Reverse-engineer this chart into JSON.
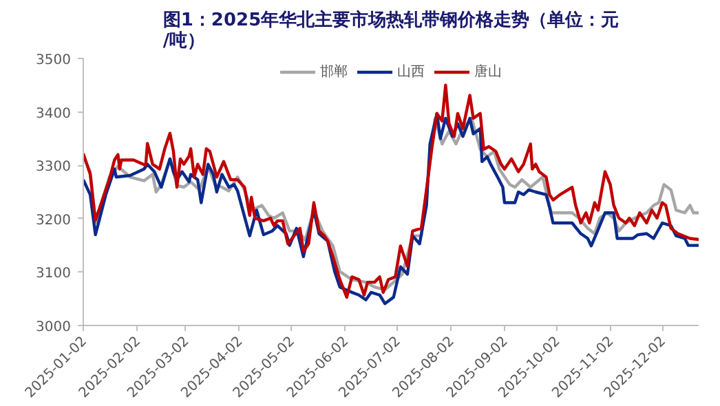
{
  "chart_data": {
    "type": "line",
    "title": "图1：2025年华北主要市场热轧带钢价格走势（单位：元/吨）",
    "legend": "top",
    "grid": false,
    "marker": "none",
    "line_style": "solid",
    "xlim": [
      "2025-01-02",
      "2025-12-23"
    ],
    "xticks": [
      "2025-01-02",
      "2025-02-02",
      "2025-03-02",
      "2025-04-02",
      "2025-05-02",
      "2025-06-02",
      "2025-07-02",
      "2025-08-02",
      "2025-09-02",
      "2025-10-02",
      "2025-11-02",
      "2025-12-02"
    ],
    "ylim": [
      3000,
      3500
    ],
    "yticks": [
      3000,
      3100,
      3200,
      3300,
      3400,
      3500
    ],
    "series": [
      {
        "name": "邯郸",
        "color": "#a6a6a6",
        "x": [
          "2025-01-02",
          "2025-01-06",
          "2025-01-09",
          "2025-01-17",
          "2025-01-22",
          "2025-01-29",
          "2025-02-06",
          "2025-02-11",
          "2025-02-13",
          "2025-02-16",
          "2025-02-21",
          "2025-02-25",
          "2025-03-01",
          "2025-03-05",
          "2025-03-10",
          "2025-03-15",
          "2025-03-19",
          "2025-03-23",
          "2025-03-27",
          "2025-04-01",
          "2025-04-05",
          "2025-04-09",
          "2025-04-15",
          "2025-04-19",
          "2025-04-22",
          "2025-04-27",
          "2025-05-01",
          "2025-05-06",
          "2025-05-10",
          "2025-05-15",
          "2025-05-20",
          "2025-05-26",
          "2025-05-30",
          "2025-06-06",
          "2025-06-14",
          "2025-06-19",
          "2025-06-25",
          "2025-06-30",
          "2025-07-05",
          "2025-07-11",
          "2025-07-16",
          "2025-07-20",
          "2025-07-24",
          "2025-07-28",
          "2025-08-01",
          "2025-08-05",
          "2025-08-09",
          "2025-08-14",
          "2025-08-19",
          "2025-08-23",
          "2025-08-27",
          "2025-08-30",
          "2025-09-05",
          "2025-09-08",
          "2025-09-12",
          "2025-09-17",
          "2025-09-24",
          "2025-09-29",
          "2025-10-11",
          "2025-10-15",
          "2025-10-20",
          "2025-10-24",
          "2025-10-27",
          "2025-10-31",
          "2025-11-04",
          "2025-11-07",
          "2025-11-11",
          "2025-11-16",
          "2025-11-23",
          "2025-11-27",
          "2025-11-30",
          "2025-12-03",
          "2025-12-07",
          "2025-12-10",
          "2025-12-15",
          "2025-12-18",
          "2025-12-20",
          "2025-12-23"
        ],
        "values": [
          3317,
          3288,
          3192,
          3278,
          3298,
          3278,
          3271,
          3283,
          3250,
          3264,
          3312,
          3262,
          3259,
          3269,
          3254,
          3298,
          3264,
          3259,
          3252,
          3278,
          3254,
          3216,
          3225,
          3206,
          3201,
          3211,
          3177,
          3177,
          3160,
          3216,
          3177,
          3149,
          3101,
          3086,
          3081,
          3072,
          3067,
          3081,
          3096,
          3168,
          3168,
          3283,
          3388,
          3340,
          3364,
          3340,
          3369,
          3388,
          3330,
          3316,
          3326,
          3293,
          3264,
          3259,
          3273,
          3259,
          3278,
          3211,
          3211,
          3201,
          3182,
          3172,
          3201,
          3211,
          3201,
          3177,
          3192,
          3201,
          3211,
          3225,
          3230,
          3264,
          3254,
          3216,
          3211,
          3225,
          3211,
          3211
        ]
      },
      {
        "name": "山西",
        "color": "#0b2a8c",
        "x": [
          "2025-01-02",
          "2025-01-06",
          "2025-01-09",
          "2025-01-15",
          "2025-01-20",
          "2025-01-21",
          "2025-01-29",
          "2025-02-06",
          "2025-02-08",
          "2025-02-12",
          "2025-02-16",
          "2025-02-21",
          "2025-02-23",
          "2025-02-25",
          "2025-02-28",
          "2025-03-04",
          "2025-03-05",
          "2025-03-09",
          "2025-03-11",
          "2025-03-15",
          "2025-03-18",
          "2025-03-20",
          "2025-03-23",
          "2025-03-27",
          "2025-03-30",
          "2025-04-01",
          "2025-04-08",
          "2025-04-10",
          "2025-04-12",
          "2025-04-16",
          "2025-04-21",
          "2025-04-24",
          "2025-04-29",
          "2025-05-01",
          "2025-05-05",
          "2025-05-09",
          "2025-05-15",
          "2025-05-18",
          "2025-05-23",
          "2025-05-27",
          "2025-05-30",
          "2025-06-06",
          "2025-06-10",
          "2025-06-14",
          "2025-06-17",
          "2025-06-22",
          "2025-06-25",
          "2025-06-30",
          "2025-07-04",
          "2025-07-08",
          "2025-07-11",
          "2025-07-15",
          "2025-07-19",
          "2025-07-21",
          "2025-07-25",
          "2025-07-27",
          "2025-07-30",
          "2025-08-03",
          "2025-08-06",
          "2025-08-09",
          "2025-08-13",
          "2025-08-15",
          "2025-08-19",
          "2025-08-20",
          "2025-08-23",
          "2025-08-25",
          "2025-08-29",
          "2025-09-01",
          "2025-09-02",
          "2025-09-08",
          "2025-09-10",
          "2025-09-13",
          "2025-09-16",
          "2025-09-20",
          "2025-09-26",
          "2025-09-28",
          "2025-09-30",
          "2025-10-11",
          "2025-10-16",
          "2025-10-20",
          "2025-10-22",
          "2025-10-25",
          "2025-10-30",
          "2025-11-04",
          "2025-11-06",
          "2025-11-15",
          "2025-11-18",
          "2025-11-23",
          "2025-11-27",
          "2025-12-02",
          "2025-12-07",
          "2025-12-10",
          "2025-12-15",
          "2025-12-17",
          "2025-12-23"
        ],
        "values": [
          3273,
          3245,
          3170,
          3245,
          3293,
          3278,
          3281,
          3293,
          3302,
          3288,
          3259,
          3312,
          3288,
          3273,
          3288,
          3269,
          3283,
          3273,
          3230,
          3302,
          3283,
          3250,
          3283,
          3259,
          3264,
          3252,
          3168,
          3192,
          3216,
          3170,
          3177,
          3187,
          3172,
          3150,
          3182,
          3129,
          3216,
          3172,
          3158,
          3101,
          3072,
          3062,
          3057,
          3048,
          3062,
          3057,
          3041,
          3053,
          3110,
          3096,
          3168,
          3153,
          3225,
          3340,
          3397,
          3350,
          3388,
          3354,
          3378,
          3354,
          3388,
          3359,
          3369,
          3307,
          3316,
          3302,
          3278,
          3259,
          3230,
          3230,
          3250,
          3245,
          3254,
          3250,
          3245,
          3221,
          3192,
          3192,
          3172,
          3163,
          3149,
          3172,
          3211,
          3211,
          3163,
          3163,
          3170,
          3172,
          3163,
          3192,
          3187,
          3168,
          3163,
          3150,
          3150
        ]
      },
      {
        "name": "唐山",
        "color": "#c00000",
        "x": [
          "2025-01-02",
          "2025-01-06",
          "2025-01-09",
          "2025-01-17",
          "2025-01-20",
          "2025-01-22",
          "2025-01-23",
          "2025-01-24",
          "2025-01-31",
          "2025-02-07",
          "2025-02-08",
          "2025-02-11",
          "2025-02-15",
          "2025-02-18",
          "2025-02-21",
          "2025-02-23",
          "2025-02-25",
          "2025-02-27",
          "2025-03-01",
          "2025-03-04",
          "2025-03-05",
          "2025-03-07",
          "2025-03-09",
          "2025-03-12",
          "2025-03-14",
          "2025-03-16",
          "2025-03-20",
          "2025-03-24",
          "2025-03-28",
          "2025-04-01",
          "2025-04-05",
          "2025-04-08",
          "2025-04-09",
          "2025-04-11",
          "2025-04-16",
          "2025-04-20",
          "2025-04-22",
          "2025-04-24",
          "2025-04-27",
          "2025-04-30",
          "2025-05-07",
          "2025-05-09",
          "2025-05-12",
          "2025-05-15",
          "2025-05-18",
          "2025-05-21",
          "2025-05-23",
          "2025-05-26",
          "2025-05-30",
          "2025-06-03",
          "2025-06-06",
          "2025-06-10",
          "2025-06-13",
          "2025-06-15",
          "2025-06-19",
          "2025-06-22",
          "2025-06-24",
          "2025-06-27",
          "2025-07-01",
          "2025-07-04",
          "2025-07-08",
          "2025-07-11",
          "2025-07-16",
          "2025-07-19",
          "2025-07-22",
          "2025-07-25",
          "2025-07-28",
          "2025-07-30",
          "2025-08-01",
          "2025-08-04",
          "2025-08-06",
          "2025-08-09",
          "2025-08-13",
          "2025-08-15",
          "2025-08-19",
          "2025-08-21",
          "2025-08-24",
          "2025-08-28",
          "2025-08-31",
          "2025-09-02",
          "2025-09-06",
          "2025-09-10",
          "2025-09-13",
          "2025-09-17",
          "2025-09-18",
          "2025-09-20",
          "2025-09-22",
          "2025-09-26",
          "2025-09-28",
          "2025-09-30",
          "2025-10-04",
          "2025-10-11",
          "2025-10-13",
          "2025-10-16",
          "2025-10-19",
          "2025-10-21",
          "2025-10-24",
          "2025-10-26",
          "2025-10-30",
          "2025-11-02",
          "2025-11-04",
          "2025-11-07",
          "2025-11-11",
          "2025-11-13",
          "2025-11-16",
          "2025-11-19",
          "2025-11-23",
          "2025-11-26",
          "2025-11-29",
          "2025-12-02",
          "2025-12-04",
          "2025-12-07",
          "2025-12-11",
          "2025-12-14",
          "2025-12-18",
          "2025-12-23"
        ],
        "values": [
          3322,
          3283,
          3197,
          3273,
          3310,
          3320,
          3293,
          3310,
          3310,
          3300,
          3341,
          3302,
          3293,
          3331,
          3360,
          3326,
          3259,
          3312,
          3302,
          3317,
          3331,
          3278,
          3302,
          3283,
          3331,
          3326,
          3278,
          3307,
          3273,
          3273,
          3259,
          3206,
          3240,
          3201,
          3196,
          3201,
          3187,
          3196,
          3196,
          3153,
          3182,
          3139,
          3153,
          3230,
          3177,
          3168,
          3158,
          3129,
          3086,
          3053,
          3091,
          3086,
          3057,
          3081,
          3081,
          3091,
          3062,
          3086,
          3091,
          3149,
          3111,
          3177,
          3182,
          3254,
          3330,
          3397,
          3383,
          3450,
          3378,
          3354,
          3397,
          3369,
          3431,
          3388,
          3397,
          3330,
          3335,
          3326,
          3302,
          3293,
          3312,
          3288,
          3302,
          3340,
          3293,
          3302,
          3288,
          3278,
          3245,
          3235,
          3245,
          3259,
          3225,
          3192,
          3211,
          3192,
          3230,
          3216,
          3288,
          3264,
          3225,
          3201,
          3192,
          3201,
          3187,
          3211,
          3192,
          3216,
          3201,
          3230,
          3225,
          3182,
          3172,
          3168,
          3163,
          3161
        ]
      }
    ]
  }
}
